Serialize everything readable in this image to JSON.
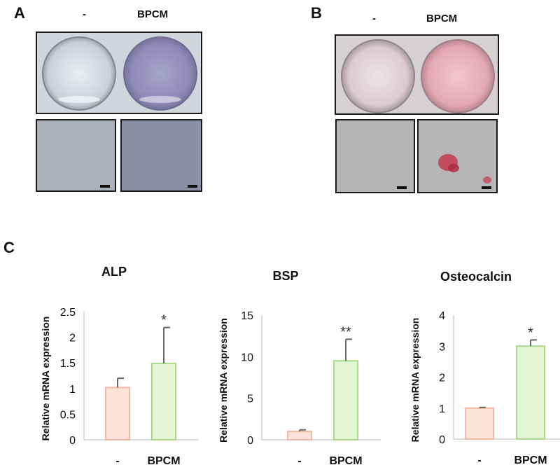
{
  "panels": {
    "a": {
      "letter": "A",
      "neg_label": "-",
      "treat_label": "BPCM"
    },
    "b": {
      "letter": "B",
      "neg_label": "-",
      "treat_label": "BPCM"
    },
    "c": {
      "letter": "C"
    }
  },
  "colors": {
    "control_fill": "#fde3d8",
    "control_stroke": "#f4b9a3",
    "treat_fill": "#e2f4d4",
    "treat_stroke": "#aad98c",
    "error_bar": "#666666",
    "axis": "#bbbbbb"
  },
  "chart_data": [
    {
      "type": "bar",
      "title": "ALP",
      "ylabel": "Relative mRNA expression",
      "categories": [
        "-",
        "BPCM"
      ],
      "values": [
        1.02,
        1.49
      ],
      "errors": [
        0.18,
        0.7
      ],
      "significance": [
        "",
        "*"
      ],
      "ylim": [
        0,
        2.5
      ],
      "yticks": [
        "0",
        "0.5",
        "1",
        "1.5",
        "2",
        "2.5"
      ],
      "grid": false,
      "legend": "none"
    },
    {
      "type": "bar",
      "title": "BSP",
      "ylabel": "Relative mRNA expression",
      "categories": [
        "-",
        "BPCM"
      ],
      "values": [
        1.0,
        9.5
      ],
      "errors": [
        0.2,
        2.6
      ],
      "significance": [
        "",
        "**"
      ],
      "ylim": [
        0,
        15
      ],
      "yticks": [
        "0",
        "5",
        "10",
        "15"
      ],
      "grid": false,
      "legend": "none"
    },
    {
      "type": "bar",
      "title": "Osteocalcin",
      "ylabel": "Relative mRNA expression",
      "categories": [
        "-",
        "BPCM"
      ],
      "values": [
        1.0,
        3.0
      ],
      "errors": [
        0.02,
        0.2
      ],
      "significance": [
        "",
        "*"
      ],
      "ylim": [
        0,
        4
      ],
      "yticks": [
        "0",
        "1",
        "2",
        "3",
        "4"
      ],
      "grid": false,
      "legend": "none"
    }
  ]
}
